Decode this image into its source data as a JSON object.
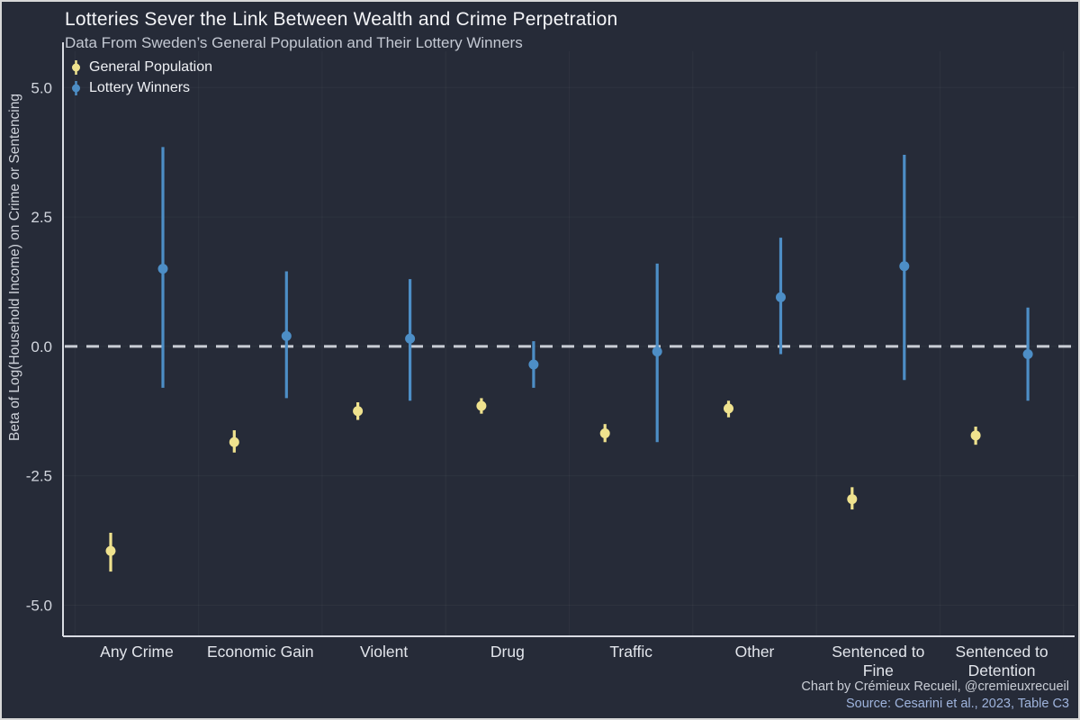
{
  "title": "Lotteries Sever the Link Between Wealth and Crime Perpetration",
  "subtitle": "Data From Sweden’s General Population and Their Lottery Winners",
  "footer": {
    "line1": "Chart by Crémieux Recueil, @cremieuxrecueil",
    "line2": "Source: Cesarini et al., 2023, Table C3"
  },
  "colors": {
    "background": "#262b38",
    "axis": "#d9dce3",
    "reference_line": "#c9cdd5",
    "tick_label": "#d2d6de",
    "category_label": "#e3e6ec",
    "gridline": "rgba(255,255,255,0.04)"
  },
  "chart_data": {
    "type": "pointrange",
    "title": "Lotteries Sever the Link Between Wealth and Crime Perpetration",
    "subtitle": "Data From Sweden’s General Population and Their Lottery Winners",
    "ylabel": "Beta of Log(Household Income) on Crime or Sentencing",
    "xlabel": "",
    "yticks": [
      5.0,
      2.5,
      0.0,
      -2.5,
      -5.0
    ],
    "ylim": [
      -5.6,
      5.7
    ],
    "reference_line": 0,
    "legend_position": "top-left",
    "grid": "faint",
    "categories": [
      "Any Crime",
      "Economic Gain",
      "Violent",
      "Drug",
      "Traffic",
      "Other",
      "Sentenced to Fine",
      "Sentenced to Detention"
    ],
    "categories_display": [
      [
        "Any Crime"
      ],
      [
        "Economic Gain"
      ],
      [
        "Violent"
      ],
      [
        "Drug"
      ],
      [
        "Traffic"
      ],
      [
        "Other"
      ],
      [
        "Sentenced to",
        "Fine"
      ],
      [
        "Sentenced to",
        "Detention"
      ]
    ],
    "series": [
      {
        "name": "General Population",
        "color": "#efe28e",
        "values": [
          -3.95,
          -1.85,
          -1.25,
          -1.15,
          -1.68,
          -1.2,
          -2.95,
          -1.72
        ],
        "ci_low": [
          -4.35,
          -2.05,
          -1.42,
          -1.3,
          -1.85,
          -1.37,
          -3.15,
          -1.9
        ],
        "ci_high": [
          -3.6,
          -1.62,
          -1.08,
          -1.0,
          -1.5,
          -1.05,
          -2.72,
          -1.55
        ]
      },
      {
        "name": "Lottery Winners",
        "color": "#4d8ec6",
        "values": [
          1.5,
          0.2,
          0.15,
          -0.35,
          -0.1,
          0.95,
          1.55,
          -0.15
        ],
        "ci_low": [
          -0.8,
          -1.0,
          -1.05,
          -0.8,
          -1.85,
          -0.15,
          -0.65,
          -1.05
        ],
        "ci_high": [
          3.85,
          1.45,
          1.3,
          0.1,
          1.6,
          2.1,
          3.7,
          0.75
        ]
      }
    ]
  }
}
